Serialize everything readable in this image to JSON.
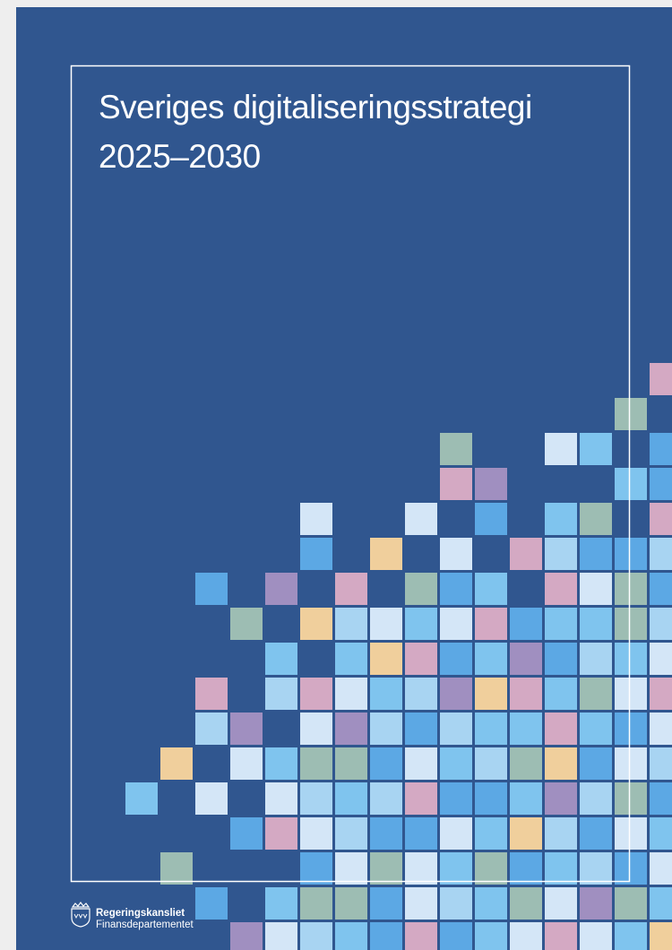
{
  "cover": {
    "title": [
      "Sveriges digitaliseringsstrategi",
      "2025–2030"
    ],
    "publisher": [
      "Regeringskansliet",
      "Finansdepartementet"
    ]
  }
}
